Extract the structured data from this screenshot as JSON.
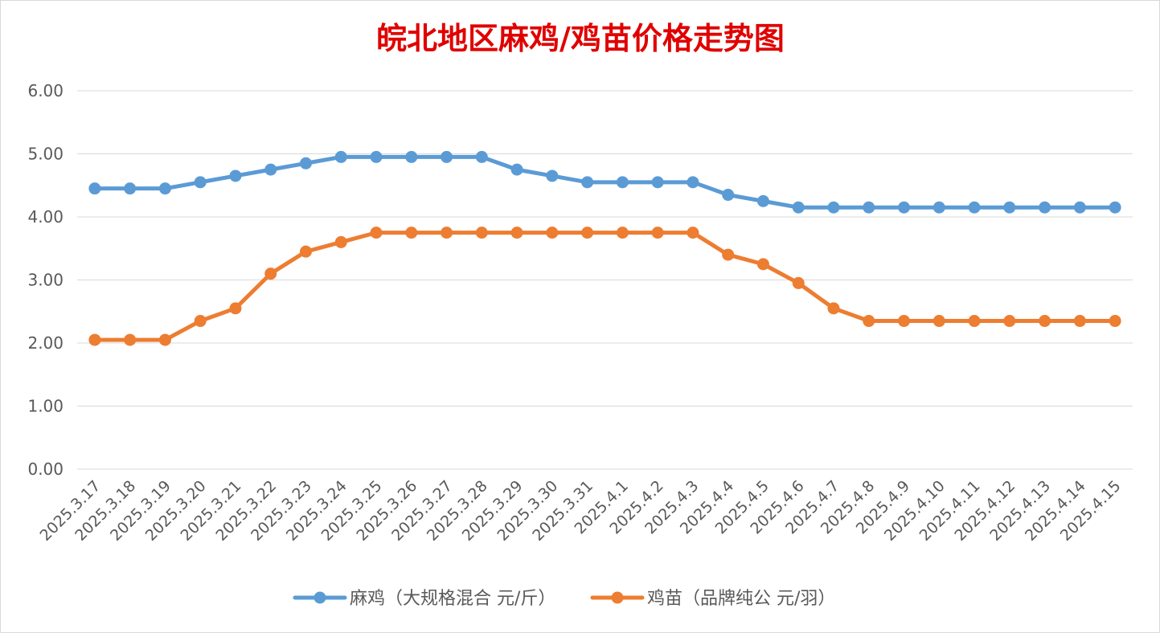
{
  "chart_data": {
    "type": "line",
    "title": "皖北地区麻鸡/鸡苗价格走势图",
    "xlabel": "",
    "ylabel": "",
    "ylim": [
      0,
      6
    ],
    "yticks": [
      "0.00",
      "1.00",
      "2.00",
      "3.00",
      "4.00",
      "5.00",
      "6.00"
    ],
    "grid": true,
    "legend_position": "bottom",
    "categories": [
      "2025.3.17",
      "2025.3.18",
      "2025.3.19",
      "2025.3.20",
      "2025.3.21",
      "2025.3.22",
      "2025.3.23",
      "2025.3.24",
      "2025.3.25",
      "2025.3.26",
      "2025.3.27",
      "2025.3.28",
      "2025.3.29",
      "2025.3.30",
      "2025.3.31",
      "2025.4.1",
      "2025.4.2",
      "2025.4.3",
      "2025.4.4",
      "2025.4.5",
      "2025.4.6",
      "2025.4.7",
      "2025.4.8",
      "2025.4.9",
      "2025.4.10",
      "2025.4.11",
      "2025.4.12",
      "2025.4.13",
      "2025.4.14",
      "2025.4.15"
    ],
    "series": [
      {
        "name": "麻鸡（大规格混合 元/斤）",
        "color": "#5b9bd5",
        "values": [
          4.45,
          4.45,
          4.45,
          4.55,
          4.65,
          4.75,
          4.85,
          4.95,
          4.95,
          4.95,
          4.95,
          4.95,
          4.75,
          4.65,
          4.55,
          4.55,
          4.55,
          4.55,
          4.35,
          4.25,
          4.15,
          4.15,
          4.15,
          4.15,
          4.15,
          4.15,
          4.15,
          4.15,
          4.15,
          4.15
        ]
      },
      {
        "name": "鸡苗（品牌纯公 元/羽）",
        "color": "#ed7d31",
        "values": [
          2.05,
          2.05,
          2.05,
          2.35,
          2.55,
          3.1,
          3.45,
          3.6,
          3.75,
          3.75,
          3.75,
          3.75,
          3.75,
          3.75,
          3.75,
          3.75,
          3.75,
          3.75,
          3.4,
          3.25,
          2.95,
          2.55,
          2.35,
          2.35,
          2.35,
          2.35,
          2.35,
          2.35,
          2.35,
          2.35
        ]
      }
    ]
  }
}
